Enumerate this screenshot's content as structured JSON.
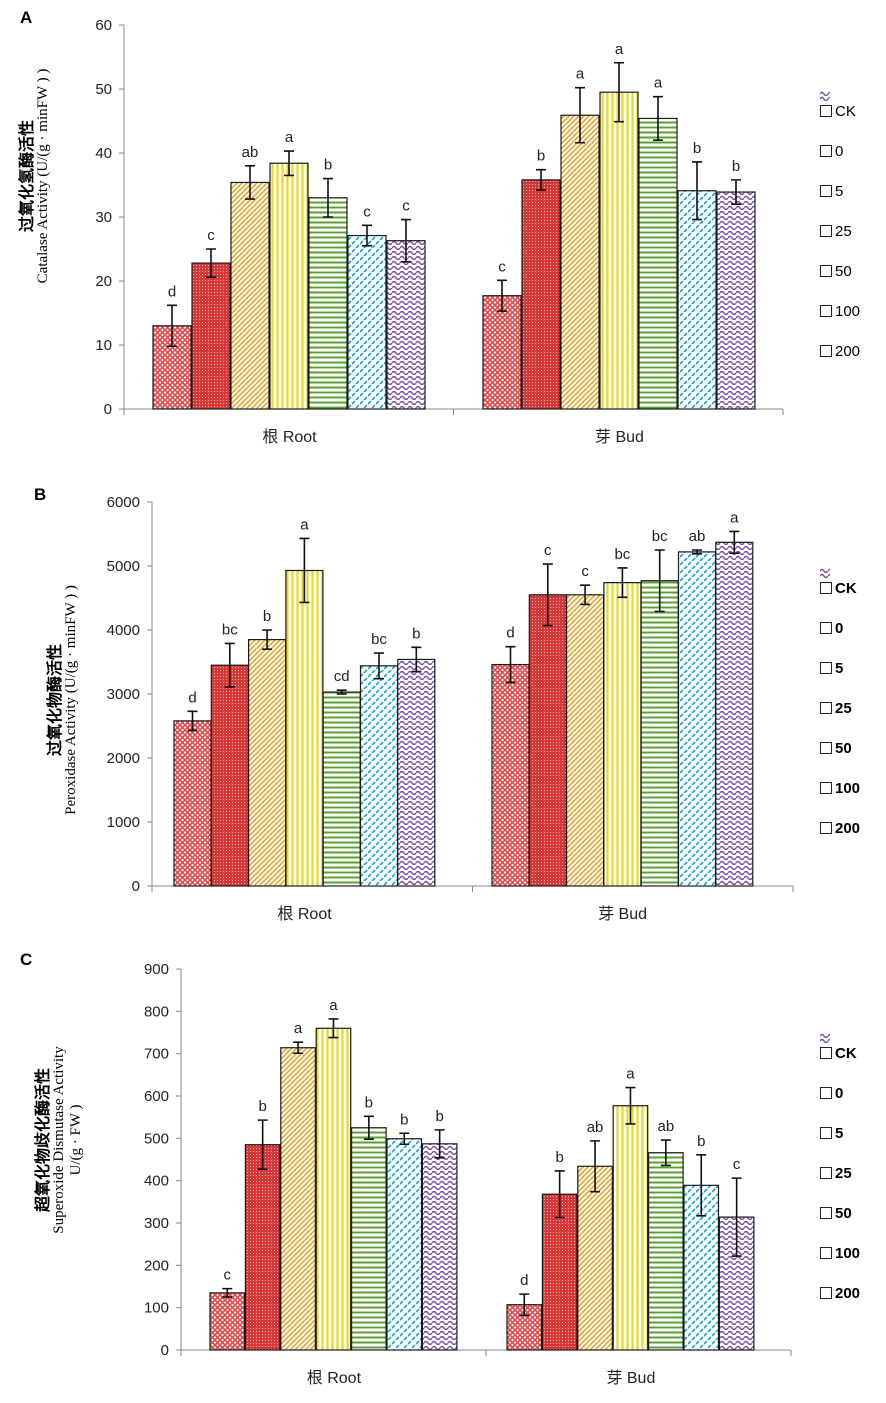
{
  "legend_items": [
    "CK",
    "0",
    "5",
    "25",
    "50",
    "100",
    "200"
  ],
  "colors": [
    "#e04a4a",
    "#d63838",
    "#e8a52a",
    "#e9d820",
    "#5aa032",
    "#29a6d6",
    "#7b4aa3"
  ],
  "chart_data": [
    {
      "panel": "A",
      "type": "bar",
      "ylabel_cn": "过氧化氢酶活性",
      "ylabel_en": "Catalase Activity (U/(g · minFW ) )",
      "categories": [
        "根 Root",
        "芽 Bud"
      ],
      "ylim": [
        0,
        60
      ],
      "yticks": [
        0,
        10,
        20,
        30,
        40,
        50,
        60
      ],
      "series": [
        {
          "name": "CK",
          "values": [
            13,
            17.7
          ],
          "errors": [
            3.2,
            2.4
          ],
          "letters": [
            "d",
            "c"
          ]
        },
        {
          "name": "0",
          "values": [
            22.8,
            35.8
          ],
          "errors": [
            2.2,
            1.6
          ],
          "letters": [
            "c",
            "b"
          ]
        },
        {
          "name": "5",
          "values": [
            35.4,
            45.9
          ],
          "errors": [
            2.6,
            4.3
          ],
          "letters": [
            "ab",
            "a"
          ]
        },
        {
          "name": "25",
          "values": [
            38.4,
            49.5
          ],
          "errors": [
            1.9,
            4.6
          ],
          "letters": [
            "a",
            "a"
          ]
        },
        {
          "name": "50",
          "values": [
            33,
            45.4
          ],
          "errors": [
            3.0,
            3.4
          ],
          "letters": [
            "b",
            "a"
          ]
        },
        {
          "name": "100",
          "values": [
            27.1,
            34.1
          ],
          "errors": [
            1.6,
            4.5
          ],
          "letters": [
            "c",
            "b"
          ]
        },
        {
          "name": "200",
          "values": [
            26.3,
            33.9
          ],
          "errors": [
            3.3,
            1.9
          ],
          "letters": [
            "c",
            "b"
          ]
        }
      ]
    },
    {
      "panel": "B",
      "type": "bar",
      "ylabel_cn": "过氧化物酶活性",
      "ylabel_en": "Peroxidase Activity (U/(g · minFW ) )",
      "categories": [
        "根 Root",
        "芽 Bud"
      ],
      "ylim": [
        0,
        6000
      ],
      "yticks": [
        0,
        1000,
        2000,
        3000,
        4000,
        5000,
        6000
      ],
      "series": [
        {
          "name": "CK",
          "values": [
            2580,
            3460
          ],
          "errors": [
            150,
            280
          ],
          "letters": [
            "d",
            "d"
          ]
        },
        {
          "name": "0",
          "values": [
            3450,
            4550
          ],
          "errors": [
            340,
            480
          ],
          "letters": [
            "bc",
            "c"
          ]
        },
        {
          "name": "5",
          "values": [
            3850,
            4550
          ],
          "errors": [
            150,
            150
          ],
          "letters": [
            "b",
            "c"
          ]
        },
        {
          "name": "25",
          "values": [
            4930,
            4740
          ],
          "errors": [
            500,
            230
          ],
          "letters": [
            "a",
            "bc"
          ]
        },
        {
          "name": "50",
          "values": [
            3030,
            4770
          ],
          "errors": [
            30,
            480
          ],
          "letters": [
            "cd",
            "bc"
          ]
        },
        {
          "name": "100",
          "values": [
            3440,
            5220
          ],
          "errors": [
            200,
            30
          ],
          "letters": [
            "bc",
            "ab"
          ]
        },
        {
          "name": "200",
          "values": [
            3540,
            5370
          ],
          "errors": [
            190,
            170
          ],
          "letters": [
            "b",
            "a"
          ]
        }
      ]
    },
    {
      "panel": "C",
      "type": "bar",
      "ylabel_cn": "超氧化物歧化酶活性",
      "ylabel_en": "Superoxide Dismutase Activity",
      "ylabel_unit": "U/(g · FW )",
      "categories": [
        "根 Root",
        "芽 Bud"
      ],
      "ylim": [
        0,
        900
      ],
      "yticks": [
        0,
        100,
        200,
        300,
        400,
        500,
        600,
        700,
        800,
        900
      ],
      "series": [
        {
          "name": "CK",
          "values": [
            135,
            107
          ],
          "errors": [
            10,
            25
          ],
          "letters": [
            "c",
            "d"
          ]
        },
        {
          "name": "0",
          "values": [
            485,
            368
          ],
          "errors": [
            58,
            55
          ],
          "letters": [
            "b",
            "b"
          ]
        },
        {
          "name": "5",
          "values": [
            714,
            434
          ],
          "errors": [
            13,
            60
          ],
          "letters": [
            "a",
            "ab"
          ]
        },
        {
          "name": "25",
          "values": [
            760,
            577
          ],
          "errors": [
            22,
            43
          ],
          "letters": [
            "a",
            "a"
          ]
        },
        {
          "name": "50",
          "values": [
            525,
            466
          ],
          "errors": [
            27,
            30
          ],
          "letters": [
            "b",
            "ab"
          ]
        },
        {
          "name": "100",
          "values": [
            499,
            389
          ],
          "errors": [
            13,
            72
          ],
          "letters": [
            "b",
            "b"
          ]
        },
        {
          "name": "200",
          "values": [
            487,
            314
          ],
          "errors": [
            33,
            92
          ],
          "letters": [
            "b",
            "c"
          ]
        }
      ]
    }
  ]
}
